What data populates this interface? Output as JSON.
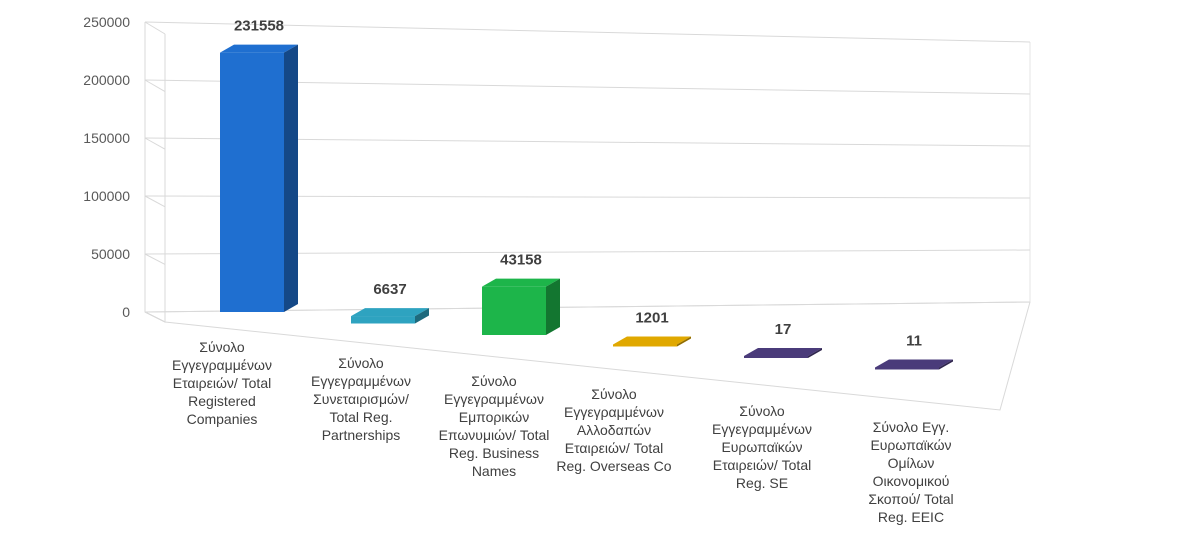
{
  "chart_data": {
    "type": "bar",
    "title": "",
    "xlabel": "",
    "ylabel": "",
    "ylim": [
      0,
      250000
    ],
    "yticks": [
      0,
      50000,
      100000,
      150000,
      200000,
      250000
    ],
    "grid": true,
    "legend": "none",
    "categories": [
      [
        "Σύνολο",
        "Εγγεγραμμένων",
        "Εταιρειών/ Total",
        "Registered",
        "Companies"
      ],
      [
        "Σύνολο",
        "Εγγεγραμμένων",
        "Συνεταιρισμών/",
        "Total Reg.",
        "Partnerships"
      ],
      [
        "Σύνολο",
        "Εγγεγραμμένων",
        "Εμπορικών",
        "Επωνυμιών/ Total",
        "Reg. Business",
        "Names"
      ],
      [
        "Σύνολο",
        "Εγγεγραμμένων",
        "Αλλοδαπών",
        "Εταιρειών/ Total",
        "Reg. Overseas Co"
      ],
      [
        "Σύνολο",
        "Εγγεγραμμένων",
        "Ευρωπαϊκών",
        "Εταιρειών/ Total",
        "Reg. SE"
      ],
      [
        "Σύνολο Εγγ.",
        "Ευρωπαϊκών",
        "Ομίλων",
        "Οικονομικού",
        "Σκοπού/ Total",
        "Reg. EEIC"
      ]
    ],
    "values": [
      231558,
      6637,
      43158,
      1201,
      17,
      11
    ],
    "data_labels": [
      "231558",
      "6637",
      "43158",
      "1201",
      "17",
      "11"
    ],
    "colors": [
      "#1F6FD0",
      "#2EA3C0",
      "#1DB54A",
      "#E0A800",
      "#4A3B7A",
      "#4A3B7A"
    ]
  }
}
